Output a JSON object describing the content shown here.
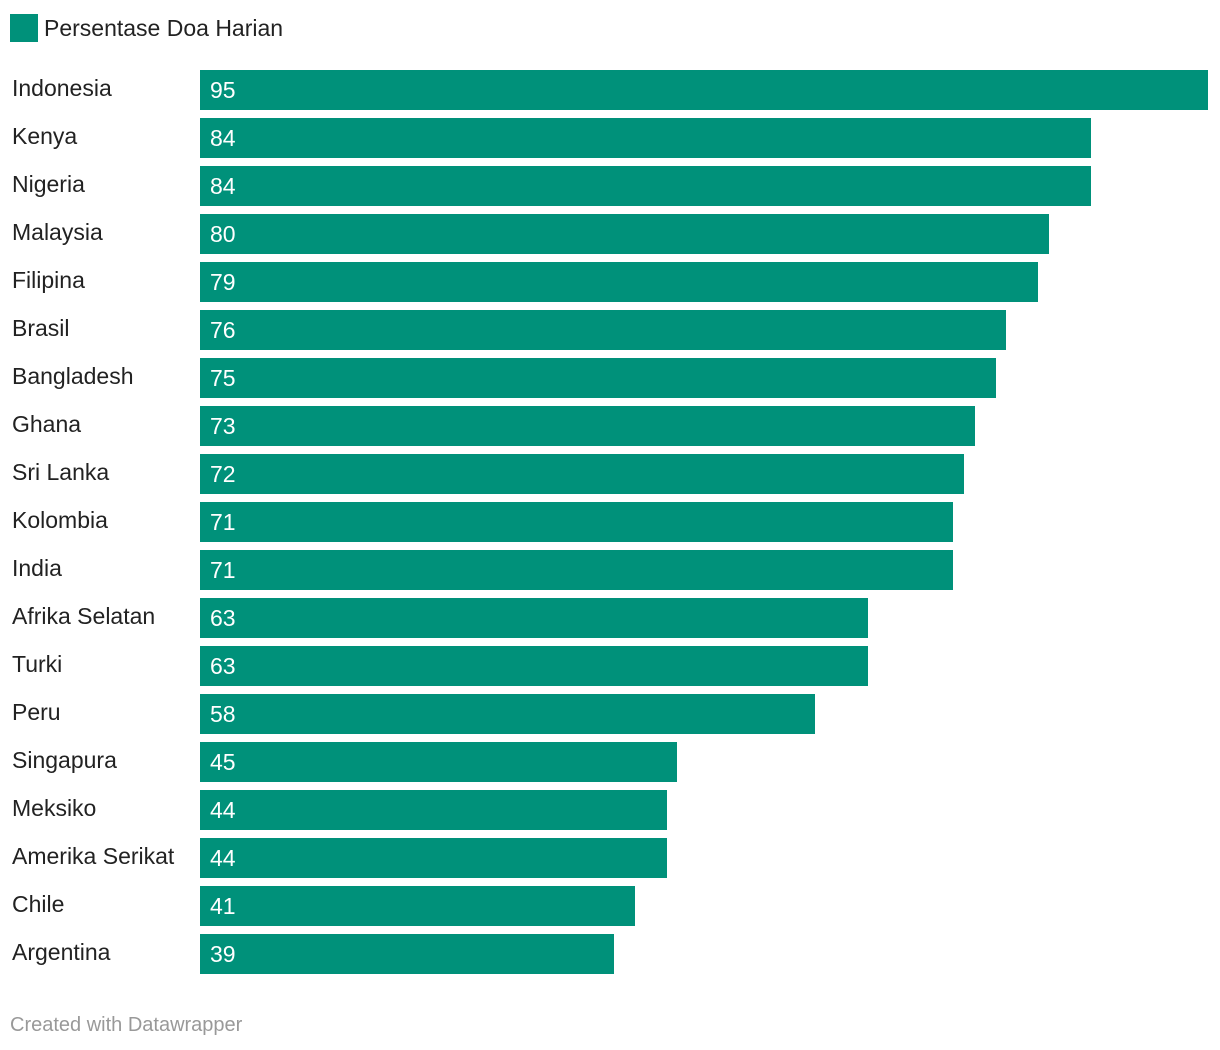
{
  "legend": {
    "label": "Persentase Doa Harian",
    "color": "#00917a"
  },
  "chart_data": {
    "type": "bar",
    "orientation": "horizontal",
    "categories": [
      "Indonesia",
      "Kenya",
      "Nigeria",
      "Malaysia",
      "Filipina",
      "Brasil",
      "Bangladesh",
      "Ghana",
      "Sri Lanka",
      "Kolombia",
      "India",
      "Afrika Selatan",
      "Turki",
      "Peru",
      "Singapura",
      "Meksiko",
      "Amerika Serikat",
      "Chile",
      "Argentina"
    ],
    "series": [
      {
        "name": "Persentase Doa Harian",
        "values": [
          95,
          84,
          84,
          80,
          79,
          76,
          75,
          73,
          72,
          71,
          71,
          63,
          63,
          58,
          45,
          44,
          44,
          41,
          39
        ],
        "color": "#00917a"
      }
    ],
    "xlim": [
      0,
      95
    ],
    "grid": false,
    "legend_position": "top-left",
    "data_labels": "inside-left"
  },
  "footer": {
    "credit": "Created with Datawrapper"
  }
}
